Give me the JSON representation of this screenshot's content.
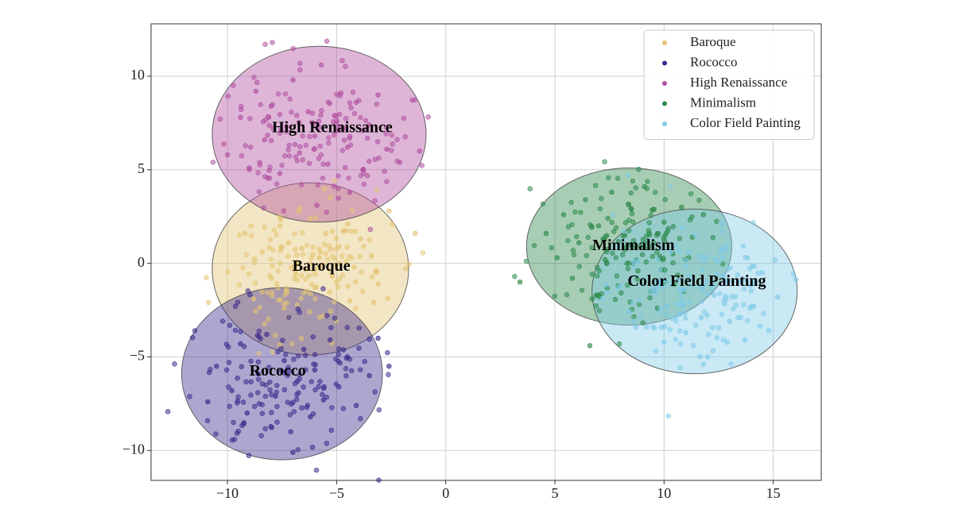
{
  "chart_data": {
    "type": "scatter",
    "title": "",
    "xlabel": "",
    "ylabel": "",
    "xlim": [
      -13.5,
      17.2
    ],
    "ylim": [
      -11.6,
      12.8
    ],
    "xticks": [
      -10,
      -5,
      0,
      5,
      10,
      15
    ],
    "yticks": [
      -10,
      -5,
      0,
      5,
      10
    ],
    "xtick_labels": [
      "−10",
      "−5",
      "0",
      "5",
      "10",
      "15"
    ],
    "ytick_labels": [
      "−10",
      "−5",
      "0",
      "5",
      "10"
    ],
    "grid": true,
    "legend_position": "top-right",
    "series": [
      {
        "name": "Baroque",
        "color": "#e3c472",
        "ellipse": {
          "cx": -6.2,
          "cy": -0.3,
          "rx": 4.5,
          "ry": 4.6
        },
        "label_pos": [
          -5.7,
          -0.2
        ],
        "seed": 11,
        "points": [
          [
            -9.2,
            1.6
          ],
          [
            -8.4,
            0.6
          ],
          [
            -8.0,
            -0.8
          ],
          [
            -7.6,
            2.0
          ],
          [
            -7.2,
            1.1
          ],
          [
            -6.9,
            -0.4
          ],
          [
            -6.6,
            0.8
          ],
          [
            -6.2,
            2.4
          ],
          [
            -6.0,
            -1.3
          ],
          [
            -5.8,
            0.3
          ],
          [
            -5.5,
            1.6
          ],
          [
            -5.2,
            -0.7
          ],
          [
            -4.9,
            0.9
          ],
          [
            -4.5,
            2.1
          ],
          [
            -4.2,
            -0.2
          ],
          [
            -3.9,
            1.3
          ],
          [
            -3.4,
            0.4
          ],
          [
            -3.1,
            -1.1
          ],
          [
            -2.6,
            2.8
          ],
          [
            -1.4,
            1.6
          ],
          [
            -8.8,
            -1.9
          ],
          [
            -7.4,
            -2.4
          ],
          [
            -5.6,
            -2.8
          ],
          [
            -4.4,
            -2.0
          ],
          [
            -3.3,
            -2.1
          ]
        ]
      },
      {
        "name": "Rococco",
        "color": "#3b2a8c",
        "ellipse": {
          "cx": -7.5,
          "cy": -5.9,
          "rx": 4.6,
          "ry": 4.6
        },
        "label_pos": [
          -7.7,
          -5.8
        ],
        "seed": 23,
        "points": [
          [
            -10.9,
            -7.4
          ],
          [
            -10.5,
            -5.5
          ],
          [
            -9.8,
            -6.8
          ],
          [
            -9.4,
            -4.3
          ],
          [
            -9.1,
            -8.0
          ],
          [
            -8.6,
            -5.9
          ],
          [
            -8.2,
            -3.8
          ],
          [
            -7.8,
            -7.1
          ],
          [
            -7.4,
            -5.2
          ],
          [
            -7.1,
            -9.0
          ],
          [
            -6.8,
            -6.3
          ],
          [
            -6.5,
            -4.6
          ],
          [
            -6.2,
            -8.2
          ],
          [
            -6.0,
            -5.7
          ],
          [
            -5.6,
            -7.3
          ],
          [
            -5.3,
            -4.1
          ],
          [
            -4.9,
            -6.6
          ],
          [
            -4.5,
            -5.0
          ],
          [
            -4.1,
            -7.6
          ],
          [
            -3.5,
            -6.0
          ],
          [
            -2.6,
            -5.5
          ],
          [
            -3.1,
            -4.0
          ],
          [
            -7.0,
            -10.1
          ]
        ]
      },
      {
        "name": "High Renaissance",
        "color": "#b04fa0",
        "ellipse": {
          "cx": -5.8,
          "cy": 6.9,
          "rx": 4.9,
          "ry": 4.7
        },
        "label_pos": [
          -5.2,
          7.2
        ],
        "seed": 37,
        "points": [
          [
            -10.0,
            5.8
          ],
          [
            -9.4,
            7.8
          ],
          [
            -9.0,
            5.1
          ],
          [
            -8.7,
            9.2
          ],
          [
            -8.3,
            6.6
          ],
          [
            -8.0,
            8.4
          ],
          [
            -7.6,
            4.8
          ],
          [
            -7.3,
            7.3
          ],
          [
            -7.0,
            9.8
          ],
          [
            -6.7,
            5.9
          ],
          [
            -6.3,
            8.1
          ],
          [
            -6.0,
            6.8
          ],
          [
            -5.7,
            10.6
          ],
          [
            -5.4,
            5.3
          ],
          [
            -5.1,
            7.9
          ],
          [
            -4.8,
            9.1
          ],
          [
            -4.5,
            6.2
          ],
          [
            -4.1,
            8.6
          ],
          [
            -3.8,
            5.0
          ],
          [
            -3.5,
            7.4
          ],
          [
            -3.1,
            9.0
          ],
          [
            -2.7,
            6.1
          ],
          [
            -2.1,
            5.4
          ],
          [
            -1.2,
            6.0
          ],
          [
            -5.9,
            3.1
          ],
          [
            -4.4,
            3.8
          ]
        ]
      },
      {
        "name": "Minimalism",
        "color": "#2e8a4c",
        "ellipse": {
          "cx": 8.4,
          "cy": 0.9,
          "rx": 4.7,
          "ry": 4.2
        },
        "label_pos": [
          8.6,
          0.9
        ],
        "seed": 53,
        "points": [
          [
            4.6,
            1.6
          ],
          [
            5.1,
            0.3
          ],
          [
            5.4,
            2.6
          ],
          [
            5.8,
            -0.8
          ],
          [
            6.1,
            1.1
          ],
          [
            6.4,
            3.4
          ],
          [
            6.7,
            -1.9
          ],
          [
            7.0,
            2.0
          ],
          [
            7.3,
            0.2
          ],
          [
            7.6,
            3.8
          ],
          [
            7.9,
            -1.2
          ],
          [
            8.2,
            1.5
          ],
          [
            8.5,
            2.9
          ],
          [
            8.8,
            -0.4
          ],
          [
            9.1,
            4.1
          ],
          [
            9.4,
            0.9
          ],
          [
            9.7,
            -2.4
          ],
          [
            10.0,
            2.2
          ],
          [
            10.4,
            0.5
          ],
          [
            10.8,
            3.0
          ],
          [
            11.3,
            1.4
          ],
          [
            11.8,
            2.6
          ],
          [
            6.6,
            -4.4
          ],
          [
            3.4,
            -1.0
          ]
        ]
      },
      {
        "name": "Color Field Painting",
        "color": "#7fcbe8",
        "ellipse": {
          "cx": 11.4,
          "cy": -1.5,
          "rx": 4.7,
          "ry": 4.4
        },
        "label_pos": [
          11.5,
          -1.0
        ],
        "seed": 71,
        "points": [
          [
            8.0,
            -1.2
          ],
          [
            8.4,
            -2.6
          ],
          [
            8.8,
            0.1
          ],
          [
            9.2,
            -3.4
          ],
          [
            9.6,
            -1.6
          ],
          [
            10.0,
            -4.2
          ],
          [
            10.3,
            0.6
          ],
          [
            10.6,
            -2.2
          ],
          [
            11.0,
            -3.7
          ],
          [
            11.3,
            -0.8
          ],
          [
            11.7,
            -2.9
          ],
          [
            12.0,
            -5.0
          ],
          [
            12.3,
            -1.7
          ],
          [
            12.7,
            0.3
          ],
          [
            13.0,
            -3.1
          ],
          [
            13.4,
            -1.0
          ],
          [
            13.7,
            -4.1
          ],
          [
            14.1,
            -2.3
          ],
          [
            14.5,
            -0.5
          ],
          [
            14.8,
            -3.6
          ],
          [
            15.2,
            -1.8
          ],
          [
            11.8,
            -5.4
          ]
        ]
      }
    ]
  }
}
